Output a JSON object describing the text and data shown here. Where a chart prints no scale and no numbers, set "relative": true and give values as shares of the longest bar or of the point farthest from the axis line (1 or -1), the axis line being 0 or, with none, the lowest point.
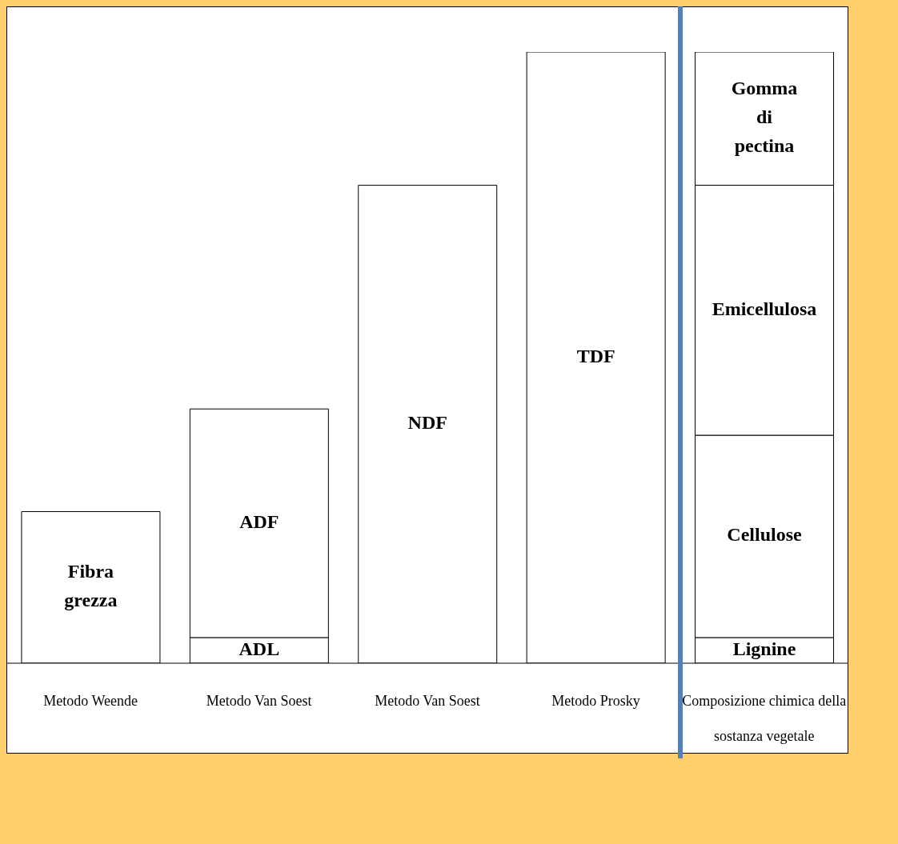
{
  "chart_data": {
    "type": "bar",
    "relative": true,
    "stacked": true,
    "categories": [
      "Metodo Weende",
      "Metodo Van Soest",
      "Metodo Van Soest",
      "Metodo Prosky",
      "Composizione chimica della sostanza vegetale"
    ],
    "series": [
      {
        "name": "Fibra grezza",
        "color": "#ffffff",
        "values": [
          0.248,
          null,
          null,
          null,
          null
        ]
      },
      {
        "name": "ADL",
        "color": "#ffffff",
        "values": [
          null,
          0.042,
          null,
          null,
          null
        ]
      },
      {
        "name": "ADF",
        "color": "#ffffff",
        "values": [
          null,
          0.374,
          null,
          null,
          null
        ]
      },
      {
        "name": "NDF",
        "color": "#ffffff",
        "values": [
          null,
          null,
          0.782,
          null,
          null
        ]
      },
      {
        "name": "TDF",
        "color": "#ffffff",
        "values": [
          null,
          null,
          null,
          1,
          null
        ]
      },
      {
        "name": "Lignine",
        "color": "#ffffff",
        "values": [
          null,
          null,
          null,
          null,
          0.042
        ]
      },
      {
        "name": "Cellulose",
        "color": "#ffffff",
        "values": [
          null,
          null,
          null,
          null,
          0.331
        ]
      },
      {
        "name": "Emicellulosa",
        "color": "#ffffff",
        "values": [
          null,
          null,
          null,
          null,
          0.409
        ]
      },
      {
        "name": "Gomma di pectina",
        "color": "#ffffff",
        "values": [
          null,
          null,
          null,
          null,
          0.218
        ]
      }
    ]
  }
}
